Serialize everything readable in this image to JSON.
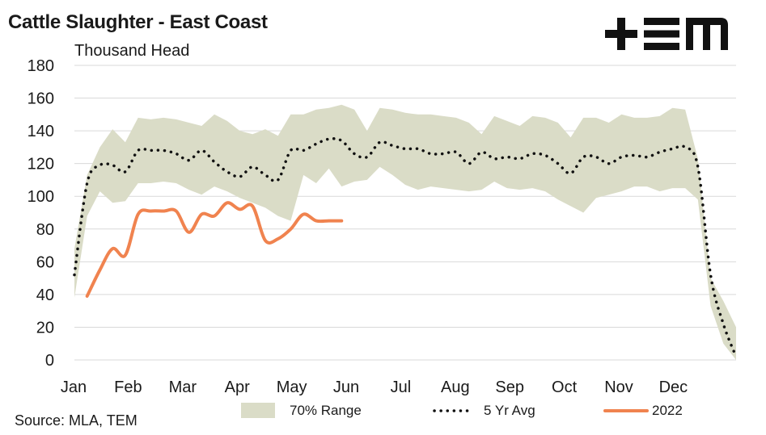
{
  "title": "Cattle Slaughter - East Coast",
  "unit_label": "Thousand Head",
  "source": "Source: MLA, TEM",
  "logo_text": "+EM",
  "colors": {
    "range": "#dadcc7",
    "avg": "#111111",
    "y2022": "#f0834f",
    "grid": "#d9d9d9",
    "logo": "#111111"
  },
  "chart_data": {
    "type": "line",
    "title": "Cattle Slaughter - East Coast",
    "ylabel": "Thousand Head",
    "ylim": [
      0,
      180
    ],
    "yticks": [
      0,
      20,
      40,
      60,
      80,
      100,
      120,
      140,
      160,
      180
    ],
    "grid": "horizontal",
    "legend_position": "bottom",
    "month_labels": [
      "Jan",
      "Feb",
      "Mar",
      "Apr",
      "May",
      "Jun",
      "Jul",
      "Aug",
      "Sep",
      "Oct",
      "Nov",
      "Dec"
    ],
    "week_count": 53,
    "range_series": {
      "name": "70% Range",
      "week": [
        1,
        2,
        3,
        4,
        5,
        6,
        7,
        8,
        9,
        10,
        11,
        12,
        13,
        14,
        15,
        16,
        17,
        18,
        19,
        20,
        21,
        22,
        23,
        24,
        25,
        26,
        27,
        28,
        29,
        30,
        31,
        32,
        33,
        34,
        35,
        36,
        37,
        38,
        39,
        40,
        41,
        42,
        43,
        44,
        45,
        46,
        47,
        48,
        49,
        50,
        51,
        52,
        53
      ],
      "high": [
        68,
        113,
        130,
        141,
        133,
        148,
        147,
        148,
        147,
        145,
        143,
        150,
        146,
        140,
        138,
        141,
        137,
        150,
        150,
        153,
        154,
        156,
        153,
        140,
        154,
        153,
        151,
        150,
        150,
        149,
        148,
        145,
        138,
        149,
        146,
        143,
        149,
        148,
        145,
        136,
        148,
        148,
        145,
        150,
        148,
        148,
        149,
        154,
        153,
        123,
        50,
        36,
        20
      ],
      "low": [
        38,
        88,
        103,
        96,
        97,
        108,
        108,
        109,
        108,
        104,
        101,
        106,
        103,
        99,
        96,
        93,
        88,
        85,
        113,
        108,
        117,
        106,
        109,
        110,
        118,
        113,
        107,
        104,
        106,
        105,
        104,
        103,
        104,
        109,
        105,
        104,
        105,
        103,
        98,
        94,
        90,
        99,
        101,
        103,
        106,
        106,
        103,
        105,
        105,
        98,
        33,
        10,
        0
      ]
    },
    "series": [
      {
        "name": "5 Yr Avg",
        "week": [
          1,
          2,
          3,
          4,
          5,
          6,
          7,
          8,
          9,
          10,
          11,
          12,
          13,
          14,
          15,
          16,
          17,
          18,
          19,
          20,
          21,
          22,
          23,
          24,
          25,
          26,
          27,
          28,
          29,
          30,
          31,
          32,
          33,
          34,
          35,
          36,
          37,
          38,
          39,
          40,
          41,
          42,
          43,
          44,
          45,
          46,
          47,
          48,
          49,
          50,
          51,
          52,
          53
        ],
        "values": [
          52,
          108,
          119,
          119,
          115,
          128,
          128,
          128,
          126,
          122,
          128,
          121,
          115,
          112,
          118,
          113,
          110,
          128,
          128,
          132,
          135,
          134,
          126,
          124,
          133,
          131,
          129,
          129,
          126,
          126,
          127,
          120,
          127,
          123,
          124,
          123,
          126,
          125,
          120,
          114,
          124,
          124,
          120,
          124,
          125,
          124,
          127,
          129,
          130,
          118,
          52,
          22,
          2
        ]
      },
      {
        "name": "2022",
        "week": [
          2,
          3,
          4,
          5,
          6,
          7,
          8,
          9,
          10,
          11,
          12,
          13,
          14,
          15,
          16,
          17,
          18,
          19,
          20,
          21,
          22
        ],
        "values": [
          39,
          55,
          68,
          64,
          89,
          91,
          91,
          91,
          78,
          89,
          88,
          96,
          92,
          94,
          73,
          74,
          80,
          89,
          85,
          85,
          85
        ]
      }
    ]
  }
}
